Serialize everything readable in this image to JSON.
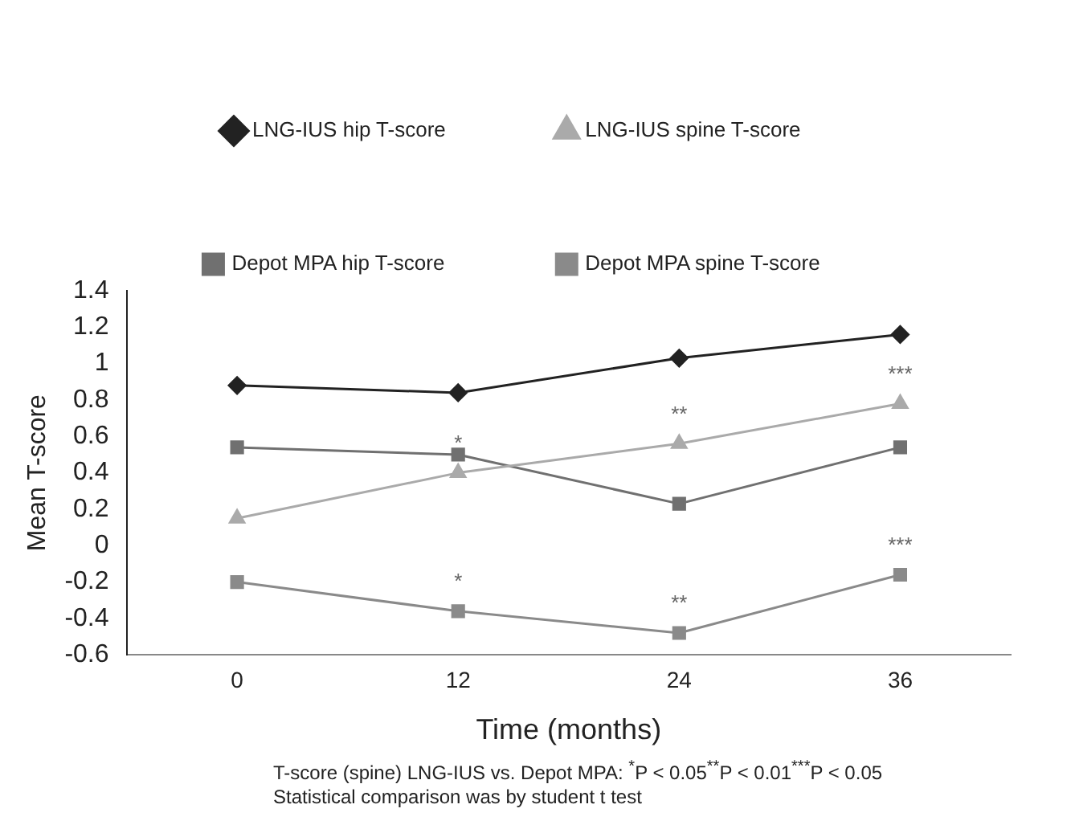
{
  "chart_data": {
    "type": "line",
    "xlabel": "Time (months)",
    "ylabel": "Mean T-score",
    "categories": [
      "0",
      "12",
      "24",
      "36"
    ],
    "series": [
      {
        "name": "LNG-IUS hip T-score",
        "color": "#222222",
        "marker": "diamond",
        "values": [
          0.88,
          0.84,
          1.03,
          1.16
        ]
      },
      {
        "name": "LNG-IUS spine T-score",
        "color": "#aaaaaa",
        "marker": "triangle",
        "values": [
          0.15,
          0.4,
          0.56,
          0.78
        ]
      },
      {
        "name": "Depot MPA hip T-score",
        "color": "#707070",
        "marker": "square",
        "values": [
          0.54,
          0.5,
          0.23,
          0.54
        ]
      },
      {
        "name": "Depot MPA spine T-score",
        "color": "#8a8a8a",
        "marker": "square",
        "values": [
          -0.2,
          -0.36,
          -0.48,
          -0.16
        ]
      }
    ],
    "ylim": [
      -0.6,
      1.4
    ],
    "yticks": [
      -0.6,
      -0.4,
      -0.2,
      0,
      0.2,
      0.4,
      0.6,
      0.8,
      1,
      1.2,
      1.4
    ],
    "grid": false,
    "legend": "top",
    "line_style": "solid",
    "annotations": [
      {
        "text": "*",
        "x": "12",
        "y": 0.4
      },
      {
        "text": "**",
        "x": "24",
        "y": 0.56
      },
      {
        "text": "***",
        "x": "36",
        "y": 0.78
      },
      {
        "text": "*",
        "x": "12",
        "y": -0.36
      },
      {
        "text": "**",
        "x": "24",
        "y": -0.48
      },
      {
        "text": "***",
        "x": "36",
        "y": -0.16
      },
      "T-score (spine) LNG-IUS vs. Depot MPA: $^{*}$P < 0.05$^{**}$P < 0.01$^{***}$P < 0.05",
      "Statistical comparison was by student t test"
    ]
  }
}
